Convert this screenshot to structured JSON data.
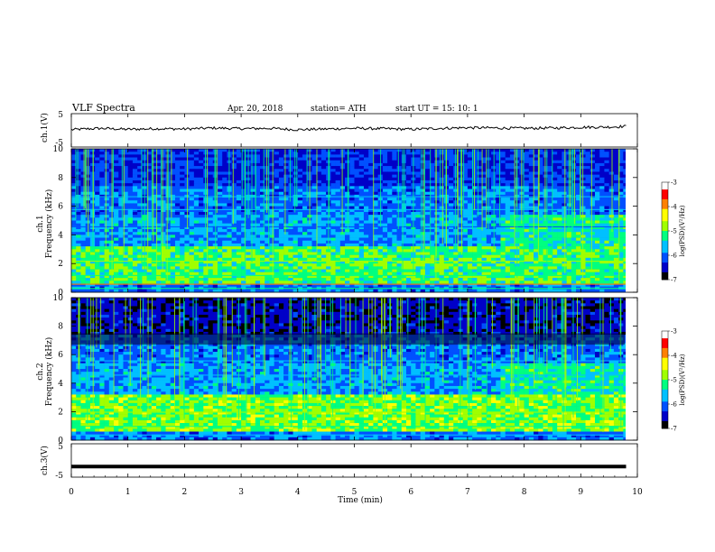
{
  "header": {
    "title": "VLF  Spectra",
    "date": "Apr. 20, 2018",
    "station": "station= ATH",
    "start": "start  UT  =    15: 10: 1"
  },
  "chart_data": [
    {
      "type": "line",
      "panel": "ch1-waveform",
      "ylabel": "ch.1(V)",
      "ylim": [
        -5,
        5
      ],
      "yticks": [
        "5",
        "-5"
      ],
      "xlim": [
        0,
        10
      ],
      "x": [
        0,
        0.5,
        1,
        1.5,
        2,
        2.5,
        3,
        3.5,
        4,
        4.5,
        5,
        5.5,
        6,
        6.5,
        7,
        7.5,
        8,
        8.5,
        9,
        9.5,
        9.8
      ],
      "values": [
        0.2,
        0.6,
        0.3,
        0.5,
        0.4,
        0.7,
        0.5,
        0.6,
        0.2,
        0.4,
        0.6,
        0.5,
        0.3,
        0.6,
        0.8,
        0.7,
        0.6,
        0.7,
        0.9,
        1.0,
        1.2
      ],
      "color": "#000000"
    },
    {
      "type": "heatmap",
      "panel": "ch1-spectrogram",
      "ylabel": "ch.1\nFrequency  (kHz)",
      "ylabel_line1": "ch.1",
      "ylabel_line2": "Frequency  (kHz)",
      "ylim": [
        0,
        10
      ],
      "yticks": [
        "0",
        "2",
        "4",
        "6",
        "8",
        "10"
      ],
      "xlim": [
        0,
        10
      ],
      "colorbar": {
        "label": "log(PSD)(V²/Hz)",
        "range": [
          -7,
          -3
        ],
        "ticks": [
          "-3",
          "-4",
          "-5",
          "-6",
          "-7"
        ]
      }
    },
    {
      "type": "heatmap",
      "panel": "ch2-spectrogram",
      "ylabel_line1": "ch.2",
      "ylabel_line2": "Frequency  (kHz)",
      "ylim": [
        0,
        10
      ],
      "yticks": [
        "0",
        "2",
        "4",
        "6",
        "8",
        "10"
      ],
      "xlim": [
        0,
        10
      ],
      "colorbar": {
        "label": "log(PSD)(V²/Hz)",
        "range": [
          -7,
          -3
        ],
        "ticks": [
          "-3",
          "-4",
          "-5",
          "-6",
          "-7"
        ]
      }
    },
    {
      "type": "line",
      "panel": "ch3-waveform",
      "ylabel": "ch.3(V)",
      "ylim": [
        -5,
        5
      ],
      "yticks": [
        "5",
        "-5"
      ],
      "xlim": [
        0,
        10
      ],
      "x": [
        0,
        9.8
      ],
      "values": [
        -1.8,
        -1.8
      ],
      "color": "#000000"
    }
  ],
  "xaxis": {
    "label": "Time  (min)",
    "ticks": [
      "0",
      "1",
      "2",
      "3",
      "4",
      "5",
      "6",
      "7",
      "8",
      "9",
      "10"
    ]
  },
  "colors": {
    "bg": "#ffffff",
    "axis": "#000000",
    "colormap": [
      "#000000",
      "#0000c8",
      "#0050ff",
      "#00c0ff",
      "#00ff80",
      "#a0ff00",
      "#ffff00",
      "#ff8000",
      "#ff0000",
      "#ffffff"
    ]
  }
}
